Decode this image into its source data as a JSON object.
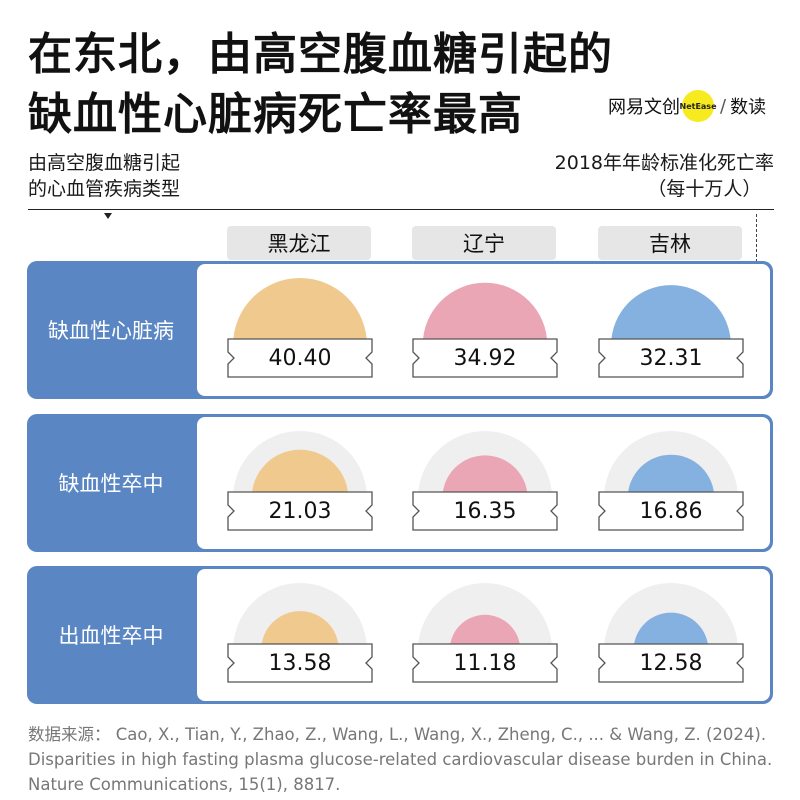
{
  "title": {
    "line1": "在东北，由高空腹血糖引起的",
    "line2": "缺血性心脏病死亡率最高"
  },
  "brand": {
    "text1": "网易文创",
    "badge": "NetEase",
    "slash": "/",
    "text2": "数读"
  },
  "header": {
    "left_line1": "由高空腹血糖引起",
    "left_line2": "的心血管疾病类型",
    "right_line1": "2018年年龄标准化死亡率",
    "right_line2": "（每十万人）"
  },
  "colors": {
    "黑龙江": "#f0c98f",
    "辽宁": "#eba6b6",
    "吉林": "#84b1e0",
    "row_band": "#5a87c3",
    "bg_arc": "#efefef"
  },
  "chart_data": {
    "type": "table",
    "title": "在东北，由高空腹血糖引起的缺血性心脏病死亡率最高",
    "columns": [
      "黑龙江",
      "辽宁",
      "吉林"
    ],
    "rows": [
      {
        "name": "缺血性心脏病",
        "values": [
          40.4,
          34.92,
          32.31
        ],
        "labels": [
          "40.40",
          "34.92",
          "32.31"
        ]
      },
      {
        "name": "缺血性卒中",
        "values": [
          21.03,
          16.35,
          16.86
        ],
        "labels": [
          "21.03",
          "16.35",
          "16.86"
        ]
      },
      {
        "name": "出血性卒中",
        "values": [
          13.58,
          11.18,
          12.58
        ],
        "labels": [
          "13.58",
          "11.18",
          "12.58"
        ]
      }
    ],
    "max_value": 40.4
  },
  "source": "数据来源：  Cao, X., Tian, Y., Zhao, Z., Wang, L., Wang, X., Zheng, C., ... & Wang, Z. (2024). Disparities in high fasting plasma glucose-related cardiovascular disease burden in China. Nature Communications, 15(1), 8817."
}
